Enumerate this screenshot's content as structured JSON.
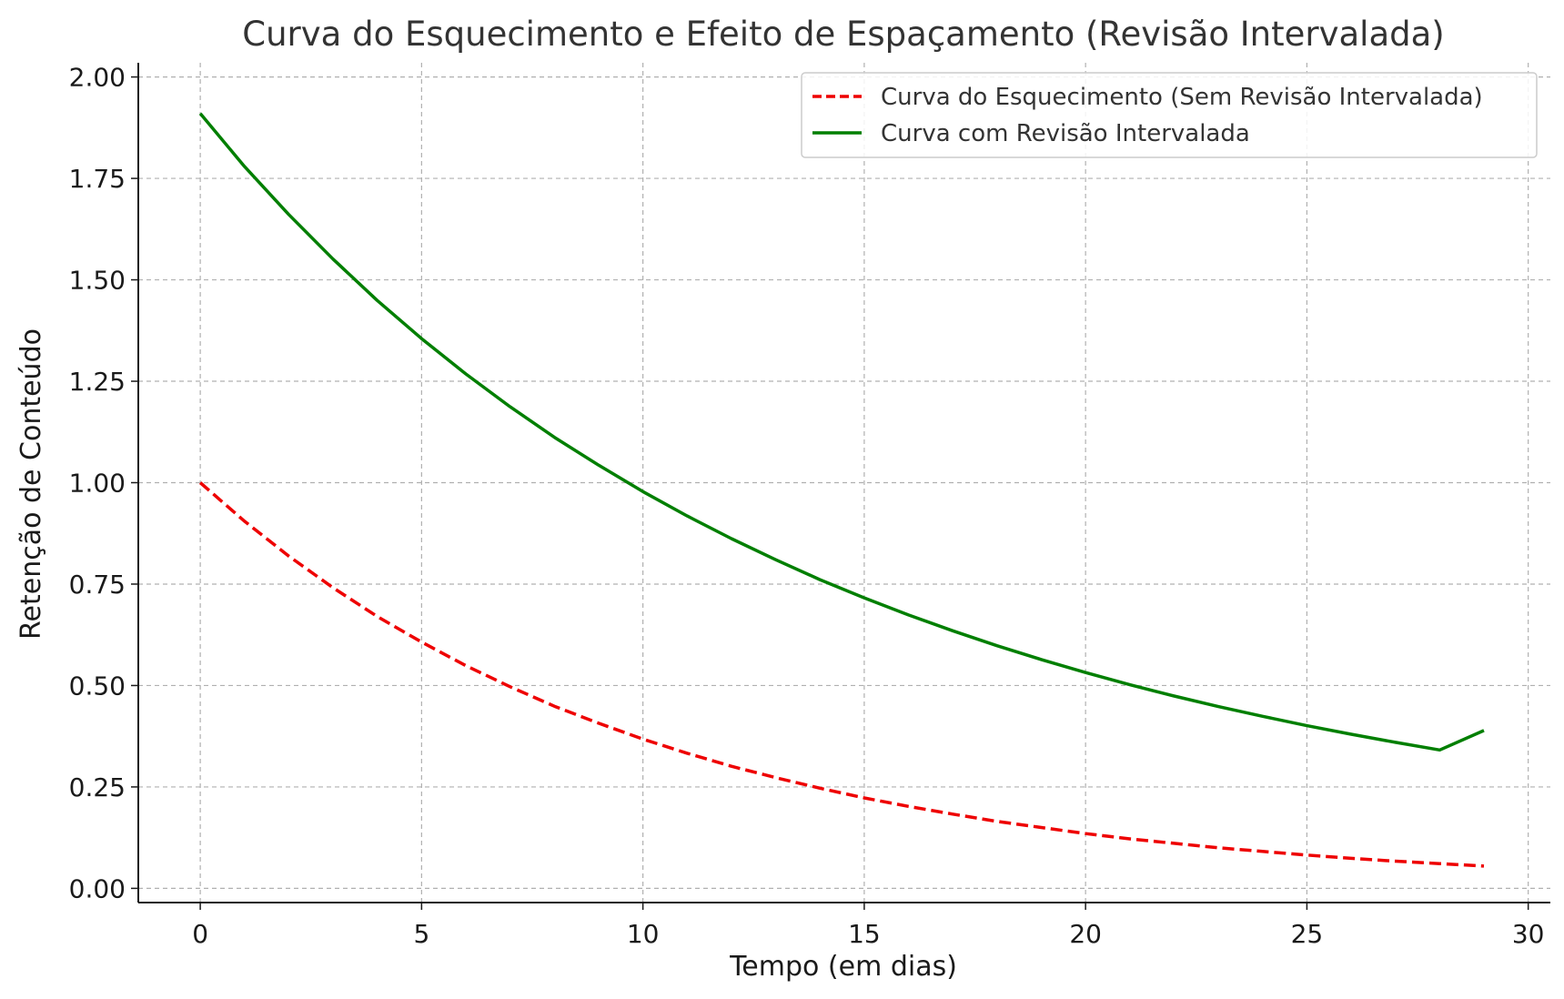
{
  "chart_data": {
    "type": "line",
    "title": "Curva do Esquecimento e Efeito de Espaçamento (Revisão Intervalada)",
    "xlabel": "Tempo (em dias)",
    "ylabel": "Retenção de Conteúdo",
    "xlim": [
      -1.4,
      30.5
    ],
    "ylim": [
      -0.035,
      2.035
    ],
    "xticks": [
      0,
      5,
      10,
      15,
      20,
      25,
      30
    ],
    "xtick_labels": [
      "0",
      "5",
      "10",
      "15",
      "20",
      "25",
      "30"
    ],
    "yticks": [
      0,
      0.25,
      0.5,
      0.75,
      1.0,
      1.25,
      1.5,
      1.75,
      2.0
    ],
    "ytick_labels": [
      "0.00",
      "0.25",
      "0.50",
      "0.75",
      "1.00",
      "1.25",
      "1.50",
      "1.75",
      "2.00"
    ],
    "grid": true,
    "legend_position": "top-right",
    "x": [
      0,
      1,
      2,
      3,
      4,
      5,
      6,
      7,
      8,
      9,
      10,
      11,
      12,
      13,
      14,
      15,
      16,
      17,
      18,
      19,
      20,
      21,
      22,
      23,
      24,
      25,
      26,
      27,
      28,
      29
    ],
    "series": [
      {
        "name": "Curva do Esquecimento (Sem Revisão Intervalada)",
        "color": "#ee0000",
        "style": "dashed",
        "values": [
          1.0,
          0.905,
          0.819,
          0.741,
          0.67,
          0.607,
          0.549,
          0.497,
          0.449,
          0.407,
          0.368,
          0.333,
          0.301,
          0.273,
          0.247,
          0.223,
          0.202,
          0.183,
          0.165,
          0.15,
          0.135,
          0.122,
          0.111,
          0.1,
          0.091,
          0.082,
          0.074,
          0.067,
          0.061,
          0.055
        ]
      },
      {
        "name": "Curva com Revisão Intervalada",
        "color": "#007f00",
        "style": "solid",
        "values": [
          1.91,
          1.779,
          1.661,
          1.551,
          1.449,
          1.355,
          1.268,
          1.187,
          1.112,
          1.043,
          0.978,
          0.918,
          0.862,
          0.81,
          0.761,
          0.716,
          0.674,
          0.635,
          0.598,
          0.564,
          0.532,
          0.502,
          0.474,
          0.448,
          0.424,
          0.401,
          0.38,
          0.36,
          0.341,
          0.389
        ]
      }
    ]
  }
}
